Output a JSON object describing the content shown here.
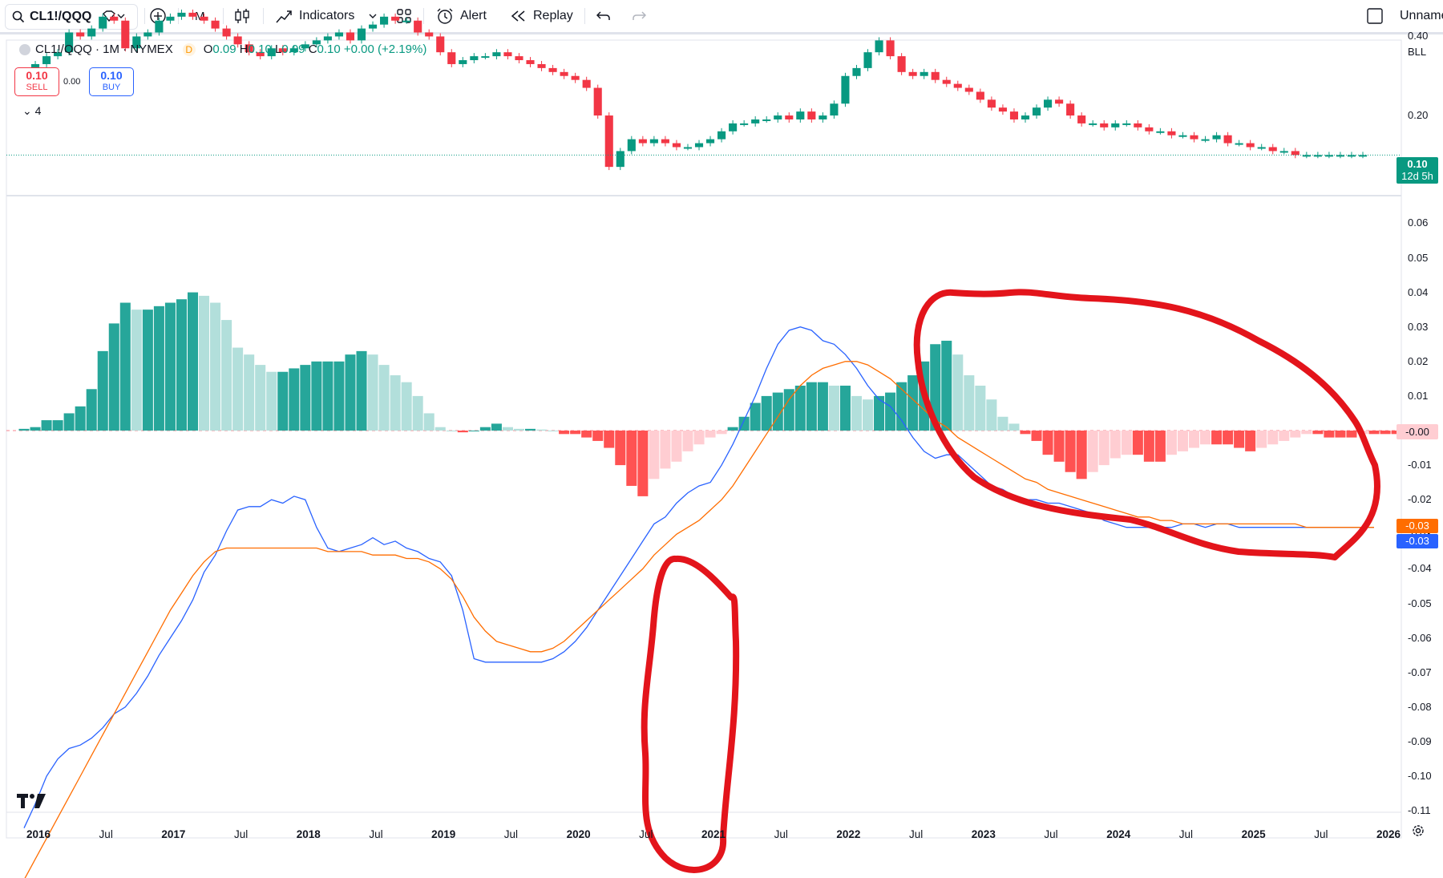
{
  "toolbar": {
    "symbol": "CL1!/QQQ",
    "timeframe": "M",
    "indicators_label": "Indicators",
    "alert_label": "Alert",
    "replay_label": "Replay",
    "layout_name": "Unname"
  },
  "legend": {
    "title": "CL1!/QQQ · 1M · NYMEX",
    "badge": "D",
    "open_label": "O",
    "open": "0.09",
    "high_label": "H",
    "high": "0.10",
    "low_label": "L",
    "low": "0.09",
    "close_label": "C",
    "close": "0.10",
    "change": "+0.00 (+2.19%)",
    "sell_price": "0.10",
    "sell_label": "SELL",
    "spread": "0.00",
    "buy_price": "0.10",
    "buy_label": "BUY",
    "indicator_count": "4"
  },
  "price_scale": {
    "mode_label": "BLL",
    "price_ticks": [
      "0.40",
      "0.20"
    ],
    "last_price": "0.10",
    "countdown": "12d 5h",
    "macd_ticks": [
      "0.06",
      "0.05",
      "0.04",
      "0.03",
      "0.02",
      "0.01",
      "-0.00",
      "-0.01",
      "-0.02",
      "-0.03",
      "-0.04",
      "-0.05",
      "-0.06",
      "-0.07",
      "-0.08",
      "-0.09",
      "-0.10",
      "-0.11"
    ],
    "zero_tag": "-0.00",
    "signal_tag": "-0.03",
    "macd_tag": "-0.03"
  },
  "time_axis": [
    "2016",
    "Jul",
    "2017",
    "Jul",
    "2018",
    "Jul",
    "2019",
    "Jul",
    "2020",
    "Jul",
    "2021",
    "Jul",
    "2022",
    "Jul",
    "2023",
    "Jul",
    "2024",
    "Jul",
    "2025",
    "Jul",
    "2026"
  ],
  "colors": {
    "up": "#089981",
    "down": "#f23645",
    "hist_up_strong": "#26a69a",
    "hist_up_weak": "#b2dfdb",
    "hist_down_strong": "#ff5252",
    "hist_down_weak": "#ffcdd2",
    "macd_line": "#2962ff",
    "signal_line": "#ff6d00",
    "annotation": "#e3141b"
  },
  "chart_data": [
    {
      "type": "candlestick",
      "title": "CL1!/QQQ · 1M · NYMEX",
      "x_start": "2016-01",
      "x_end": "2026-01",
      "y_ticks": [
        0.4,
        0.2
      ],
      "close": [
        0.29,
        0.33,
        0.35,
        0.36,
        0.41,
        0.4,
        0.42,
        0.45,
        0.44,
        0.37,
        0.4,
        0.41,
        0.44,
        0.45,
        0.46,
        0.45,
        0.44,
        0.42,
        0.4,
        0.38,
        0.36,
        0.35,
        0.37,
        0.36,
        0.37,
        0.38,
        0.39,
        0.4,
        0.41,
        0.39,
        0.42,
        0.43,
        0.45,
        0.44,
        0.44,
        0.41,
        0.4,
        0.36,
        0.33,
        0.34,
        0.35,
        0.35,
        0.36,
        0.35,
        0.34,
        0.33,
        0.32,
        0.31,
        0.3,
        0.29,
        0.27,
        0.2,
        0.07,
        0.11,
        0.14,
        0.13,
        0.14,
        0.13,
        0.12,
        0.12,
        0.13,
        0.14,
        0.16,
        0.18,
        0.18,
        0.19,
        0.19,
        0.2,
        0.19,
        0.21,
        0.19,
        0.2,
        0.23,
        0.3,
        0.32,
        0.36,
        0.39,
        0.35,
        0.31,
        0.3,
        0.31,
        0.29,
        0.28,
        0.27,
        0.26,
        0.24,
        0.22,
        0.21,
        0.19,
        0.2,
        0.22,
        0.24,
        0.23,
        0.2,
        0.18,
        0.18,
        0.17,
        0.18,
        0.18,
        0.17,
        0.16,
        0.16,
        0.15,
        0.15,
        0.14,
        0.14,
        0.15,
        0.13,
        0.13,
        0.12,
        0.12,
        0.11,
        0.11,
        0.1,
        0.1,
        0.1,
        0.1,
        0.1,
        0.1,
        0.1
      ]
    },
    {
      "type": "line",
      "title": "MACD",
      "y_ticks": [
        0.06,
        0.05,
        0.04,
        0.03,
        0.02,
        0.01,
        0,
        -0.01,
        -0.02,
        -0.03,
        -0.04,
        -0.05,
        -0.06,
        -0.07,
        -0.08,
        -0.09,
        -0.1,
        -0.11
      ],
      "histogram": [
        0.0005,
        0.001,
        0.003,
        0.003,
        0.005,
        0.007,
        0.012,
        0.023,
        0.031,
        0.037,
        0.035,
        0.035,
        0.036,
        0.037,
        0.038,
        0.04,
        0.039,
        0.037,
        0.032,
        0.024,
        0.022,
        0.019,
        0.017,
        0.017,
        0.018,
        0.019,
        0.02,
        0.02,
        0.02,
        0.022,
        0.023,
        0.022,
        0.019,
        0.016,
        0.014,
        0.01,
        0.005,
        0.001,
        0,
        -0.0005,
        0,
        0.001,
        0.002,
        0.001,
        0.0005,
        0.0005,
        0.0003,
        0,
        -0.001,
        -0.001,
        -0.002,
        -0.003,
        -0.005,
        -0.01,
        -0.016,
        -0.019,
        -0.014,
        -0.011,
        -0.009,
        -0.006,
        -0.004,
        -0.002,
        -0.001,
        0.001,
        0.004,
        0.008,
        0.01,
        0.011,
        0.012,
        0.013,
        0.014,
        0.014,
        0.013,
        0.013,
        0.01,
        0.009,
        0.01,
        0.011,
        0.014,
        0.016,
        0.02,
        0.025,
        0.026,
        0.022,
        0.016,
        0.013,
        0.009,
        0.004,
        0.002,
        -0.001,
        -0.003,
        -0.007,
        -0.009,
        -0.012,
        -0.014,
        -0.012,
        -0.01,
        -0.008,
        -0.007,
        -0.007,
        -0.009,
        -0.009,
        -0.007,
        -0.006,
        -0.005,
        -0.004,
        -0.004,
        -0.004,
        -0.005,
        -0.006,
        -0.005,
        -0.004,
        -0.003,
        -0.002,
        -0.001,
        -0.001,
        -0.002,
        -0.002,
        -0.002,
        -0.001,
        -0.001,
        -0.001,
        -0.001,
        -0.001
      ],
      "series": [
        {
          "name": "MACD",
          "values": [
            -0.115,
            -0.108,
            -0.1,
            -0.095,
            -0.092,
            -0.091,
            -0.089,
            -0.086,
            -0.082,
            -0.08,
            -0.076,
            -0.071,
            -0.065,
            -0.06,
            -0.055,
            -0.049,
            -0.041,
            -0.036,
            -0.029,
            -0.023,
            -0.022,
            -0.022,
            -0.02,
            -0.021,
            -0.019,
            -0.02,
            -0.028,
            -0.034,
            -0.035,
            -0.034,
            -0.033,
            -0.031,
            -0.033,
            -0.032,
            -0.034,
            -0.035,
            -0.037,
            -0.038,
            -0.042,
            -0.052,
            -0.066,
            -0.067,
            -0.067,
            -0.067,
            -0.067,
            -0.067,
            -0.067,
            -0.066,
            -0.064,
            -0.061,
            -0.057,
            -0.052,
            -0.047,
            -0.042,
            -0.037,
            -0.032,
            -0.027,
            -0.025,
            -0.021,
            -0.018,
            -0.016,
            -0.015,
            -0.01,
            -0.004,
            0.003,
            0.01,
            0.018,
            0.025,
            0.029,
            0.03,
            0.029,
            0.026,
            0.025,
            0.022,
            0.018,
            0.013,
            0.009,
            0.007,
            0.003,
            -0.002,
            -0.006,
            -0.008,
            -0.007,
            -0.007,
            -0.01,
            -0.013,
            -0.016,
            -0.017,
            -0.019,
            -0.02,
            -0.02,
            -0.021,
            -0.021,
            -0.022,
            -0.023,
            -0.024,
            -0.026,
            -0.027,
            -0.028,
            -0.028,
            -0.028,
            -0.028,
            -0.028,
            -0.027,
            -0.027,
            -0.028,
            -0.027,
            -0.027,
            -0.028,
            -0.028,
            -0.028,
            -0.028,
            -0.028,
            -0.028,
            -0.028,
            -0.028,
            -0.028,
            -0.028,
            -0.028,
            -0.028,
            -0.028
          ]
        },
        {
          "name": "Signal",
          "values": [
            -0.13,
            -0.124,
            -0.118,
            -0.112,
            -0.106,
            -0.1,
            -0.094,
            -0.088,
            -0.082,
            -0.076,
            -0.07,
            -0.064,
            -0.058,
            -0.052,
            -0.047,
            -0.042,
            -0.038,
            -0.035,
            -0.034,
            -0.034,
            -0.034,
            -0.034,
            -0.034,
            -0.034,
            -0.034,
            -0.034,
            -0.034,
            -0.035,
            -0.035,
            -0.035,
            -0.035,
            -0.036,
            -0.036,
            -0.036,
            -0.037,
            -0.037,
            -0.038,
            -0.04,
            -0.043,
            -0.048,
            -0.054,
            -0.058,
            -0.061,
            -0.062,
            -0.063,
            -0.064,
            -0.064,
            -0.063,
            -0.061,
            -0.058,
            -0.055,
            -0.052,
            -0.049,
            -0.046,
            -0.043,
            -0.04,
            -0.036,
            -0.033,
            -0.03,
            -0.028,
            -0.026,
            -0.023,
            -0.02,
            -0.016,
            -0.011,
            -0.006,
            -0.001,
            0.004,
            0.009,
            0.013,
            0.016,
            0.018,
            0.019,
            0.02,
            0.02,
            0.019,
            0.017,
            0.015,
            0.012,
            0.009,
            0.006,
            0.003,
            0.001,
            -0.002,
            -0.004,
            -0.006,
            -0.008,
            -0.01,
            -0.012,
            -0.014,
            -0.015,
            -0.017,
            -0.018,
            -0.019,
            -0.02,
            -0.021,
            -0.022,
            -0.023,
            -0.024,
            -0.025,
            -0.025,
            -0.026,
            -0.026,
            -0.027,
            -0.027,
            -0.027,
            -0.027,
            -0.027,
            -0.027,
            -0.027,
            -0.027,
            -0.027,
            -0.027,
            -0.027,
            -0.028,
            -0.028,
            -0.028,
            -0.028,
            -0.028,
            -0.028,
            -0.028
          ]
        }
      ]
    }
  ]
}
